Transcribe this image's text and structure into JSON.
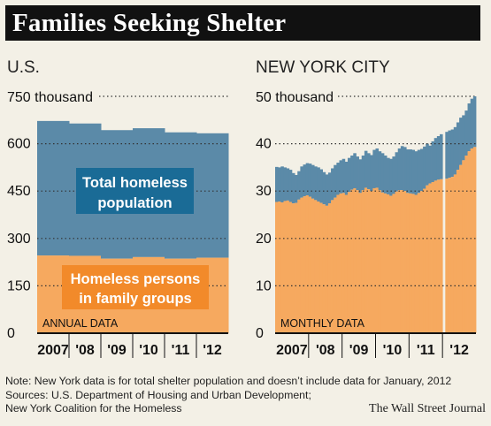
{
  "title": "Families Seeking Shelter",
  "footnotes": {
    "note": "Note: New York data is for total shelter population and doesn’t include data for January, 2012",
    "sources_1": "Sources: U.S. Department of Housing and Urban Development;",
    "sources_2": "New York Coalition for the Homeless",
    "credit": "The Wall Street Journal"
  },
  "colors": {
    "total": "#5b8aa8",
    "family": "#f6a95f",
    "label_total_bg": "#1a6b96",
    "label_family_bg": "#f28a2a"
  },
  "chart_data": [
    {
      "type": "area",
      "subtitle": "U.S.",
      "annotation": "ANNUAL DATA",
      "y_unit_label": "750 thousand",
      "ylim": [
        0,
        750
      ],
      "yticks": [
        0,
        150,
        300,
        450,
        600
      ],
      "x_tick_labels": [
        "2007",
        "'08",
        "'09",
        "'10",
        "'11",
        "'12"
      ],
      "categories": [
        "2007",
        "2008",
        "2009",
        "2010",
        "2011",
        "2012"
      ],
      "series": [
        {
          "name": "Total homeless population",
          "values": [
            672,
            664,
            643,
            649,
            636,
            633
          ]
        },
        {
          "name": "Homeless persons in family groups",
          "values": [
            246,
            245,
            236,
            241,
            236,
            239
          ]
        }
      ],
      "labels": {
        "total_1": "Total homeless",
        "total_2": "population",
        "family_1": "Homeless persons",
        "family_2": "in family groups"
      }
    },
    {
      "type": "area",
      "subtitle": "NEW YORK CITY",
      "annotation": "MONTHLY DATA",
      "y_unit_label": "50 thousand",
      "ylim": [
        0,
        50
      ],
      "yticks": [
        0,
        10,
        20,
        30,
        40
      ],
      "x_tick_labels": [
        "2007",
        "'08",
        "'09",
        "'10",
        "'11",
        "'12"
      ],
      "months_start": "2007-01",
      "missing": [
        "2012-01"
      ],
      "total": [
        35.1,
        35.0,
        35.2,
        35.0,
        34.8,
        34.5,
        33.8,
        33.4,
        34.2,
        35.2,
        35.6,
        35.9,
        35.8,
        35.5,
        35.2,
        35.0,
        34.6,
        34.0,
        33.5,
        33.9,
        34.8,
        35.5,
        36.0,
        36.5,
        36.8,
        36.2,
        37.0,
        37.5,
        38.0,
        37.3,
        36.7,
        37.5,
        38.5,
        38.0,
        37.6,
        38.7,
        39.0,
        38.4,
        38.0,
        37.5,
        37.0,
        36.8,
        37.3,
        38.2,
        39.0,
        39.5,
        39.3,
        38.8,
        38.8,
        38.7,
        38.4,
        38.7,
        38.9,
        39.4,
        40.0,
        39.6,
        40.5,
        41.2,
        41.6,
        42.0,
        0,
        42.5,
        42.8,
        43.0,
        43.5,
        44.5,
        45.5,
        46.0,
        47.0,
        48.5,
        49.5,
        50.0
      ],
      "family": [
        27.7,
        27.8,
        27.6,
        27.9,
        28.0,
        27.7,
        27.4,
        27.5,
        28.2,
        28.6,
        28.9,
        29.1,
        28.8,
        28.4,
        28.1,
        27.8,
        27.5,
        27.2,
        26.9,
        27.4,
        28.1,
        28.6,
        29.2,
        29.5,
        29.6,
        29.2,
        29.8,
        30.3,
        30.6,
        30.2,
        29.6,
        30.2,
        30.7,
        30.4,
        30.0,
        30.6,
        30.7,
        30.2,
        29.7,
        29.5,
        29.3,
        29.0,
        29.4,
        29.9,
        30.2,
        30.2,
        30.0,
        29.6,
        29.5,
        29.4,
        29.2,
        29.6,
        30.0,
        30.5,
        31.2,
        31.6,
        31.9,
        32.2,
        32.4,
        32.5,
        0,
        32.6,
        32.8,
        33.0,
        33.5,
        34.5,
        35.5,
        36.5,
        37.5,
        38.4,
        39.0,
        39.3
      ]
    }
  ]
}
